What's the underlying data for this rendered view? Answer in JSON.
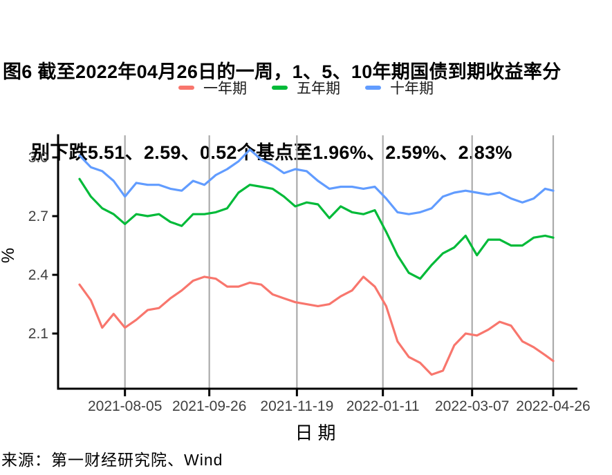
{
  "title": {
    "line1": "图6 截至2022年04月26日的一周，1、5、10年期国债到期收益率分",
    "line2": "别下跌5.51、2.59、0.52个基点至1.96%、2.59%、2.83%"
  },
  "legend": [
    {
      "label": "一年期",
      "color": "#F8766D"
    },
    {
      "label": "五年期",
      "color": "#00BA38"
    },
    {
      "label": "十年期",
      "color": "#619CFF"
    }
  ],
  "source": "来源：第一财经研究院、Wind",
  "colors": {
    "one_year": "#F8766D",
    "five_year": "#00BA38",
    "ten_year": "#619CFF",
    "gridline": "#ABABAB",
    "axis": "#000000",
    "tick_label": "#3F3F3F"
  },
  "chart_data": {
    "type": "line",
    "title": "图6 截至2022年04月26日的一周，1、5、10年期国债到期收益率分别下跌5.51、2.59、0.52个基点至1.96%、2.59%、2.83%",
    "xlabel": "日期",
    "ylabel": "%",
    "ylim": [
      1.818,
      3.113
    ],
    "yticks": [
      2.1,
      2.4,
      2.7,
      3.0
    ],
    "xticks": [
      "2021-08-05",
      "2021-09-26",
      "2021-11-19",
      "2022-01-11",
      "2022-03-07",
      "2022-04-26"
    ],
    "grid": "vertical-only",
    "legend_position": "top",
    "x": [
      "2021-07-08",
      "2021-07-15",
      "2021-07-22",
      "2021-07-29",
      "2021-08-05",
      "2021-08-12",
      "2021-08-19",
      "2021-08-26",
      "2021-09-02",
      "2021-09-09",
      "2021-09-16",
      "2021-09-23",
      "2021-09-30",
      "2021-10-07",
      "2021-10-14",
      "2021-10-21",
      "2021-10-28",
      "2021-11-04",
      "2021-11-11",
      "2021-11-18",
      "2021-11-25",
      "2021-12-02",
      "2021-12-09",
      "2021-12-16",
      "2021-12-23",
      "2021-12-30",
      "2022-01-06",
      "2022-01-13",
      "2022-01-20",
      "2022-01-27",
      "2022-02-03",
      "2022-02-10",
      "2022-02-17",
      "2022-02-24",
      "2022-03-03",
      "2022-03-10",
      "2022-03-17",
      "2022-03-24",
      "2022-03-31",
      "2022-04-07",
      "2022-04-14",
      "2022-04-21",
      "2022-04-26"
    ],
    "series": [
      {
        "name": "一年期",
        "color": "#F8766D",
        "values": [
          2.35,
          2.27,
          2.13,
          2.2,
          2.13,
          2.17,
          2.22,
          2.23,
          2.28,
          2.32,
          2.37,
          2.39,
          2.38,
          2.34,
          2.34,
          2.36,
          2.35,
          2.3,
          2.28,
          2.26,
          2.25,
          2.24,
          2.25,
          2.29,
          2.32,
          2.39,
          2.34,
          2.24,
          2.06,
          1.98,
          1.95,
          1.89,
          1.91,
          2.04,
          2.1,
          2.09,
          2.12,
          2.16,
          2.14,
          2.06,
          2.03,
          1.99,
          1.96
        ]
      },
      {
        "name": "五年期",
        "color": "#00BA38",
        "values": [
          2.89,
          2.8,
          2.74,
          2.71,
          2.66,
          2.71,
          2.7,
          2.71,
          2.67,
          2.65,
          2.71,
          2.71,
          2.72,
          2.74,
          2.82,
          2.86,
          2.85,
          2.84,
          2.8,
          2.75,
          2.77,
          2.76,
          2.69,
          2.75,
          2.72,
          2.71,
          2.73,
          2.62,
          2.5,
          2.41,
          2.38,
          2.45,
          2.51,
          2.54,
          2.6,
          2.5,
          2.58,
          2.58,
          2.55,
          2.55,
          2.59,
          2.6,
          2.59
        ]
      },
      {
        "name": "十年期",
        "color": "#619CFF",
        "values": [
          3.01,
          2.95,
          2.93,
          2.88,
          2.8,
          2.87,
          2.86,
          2.86,
          2.84,
          2.83,
          2.88,
          2.86,
          2.91,
          2.94,
          2.98,
          3.04,
          2.99,
          2.96,
          2.92,
          2.94,
          2.93,
          2.88,
          2.84,
          2.85,
          2.85,
          2.84,
          2.85,
          2.79,
          2.72,
          2.71,
          2.72,
          2.74,
          2.8,
          2.82,
          2.83,
          2.82,
          2.81,
          2.82,
          2.79,
          2.77,
          2.79,
          2.84,
          2.83
        ]
      }
    ],
    "final_values": {
      "一年期": "1.96%",
      "五年期": "2.59%",
      "十年期": "2.83%"
    }
  }
}
